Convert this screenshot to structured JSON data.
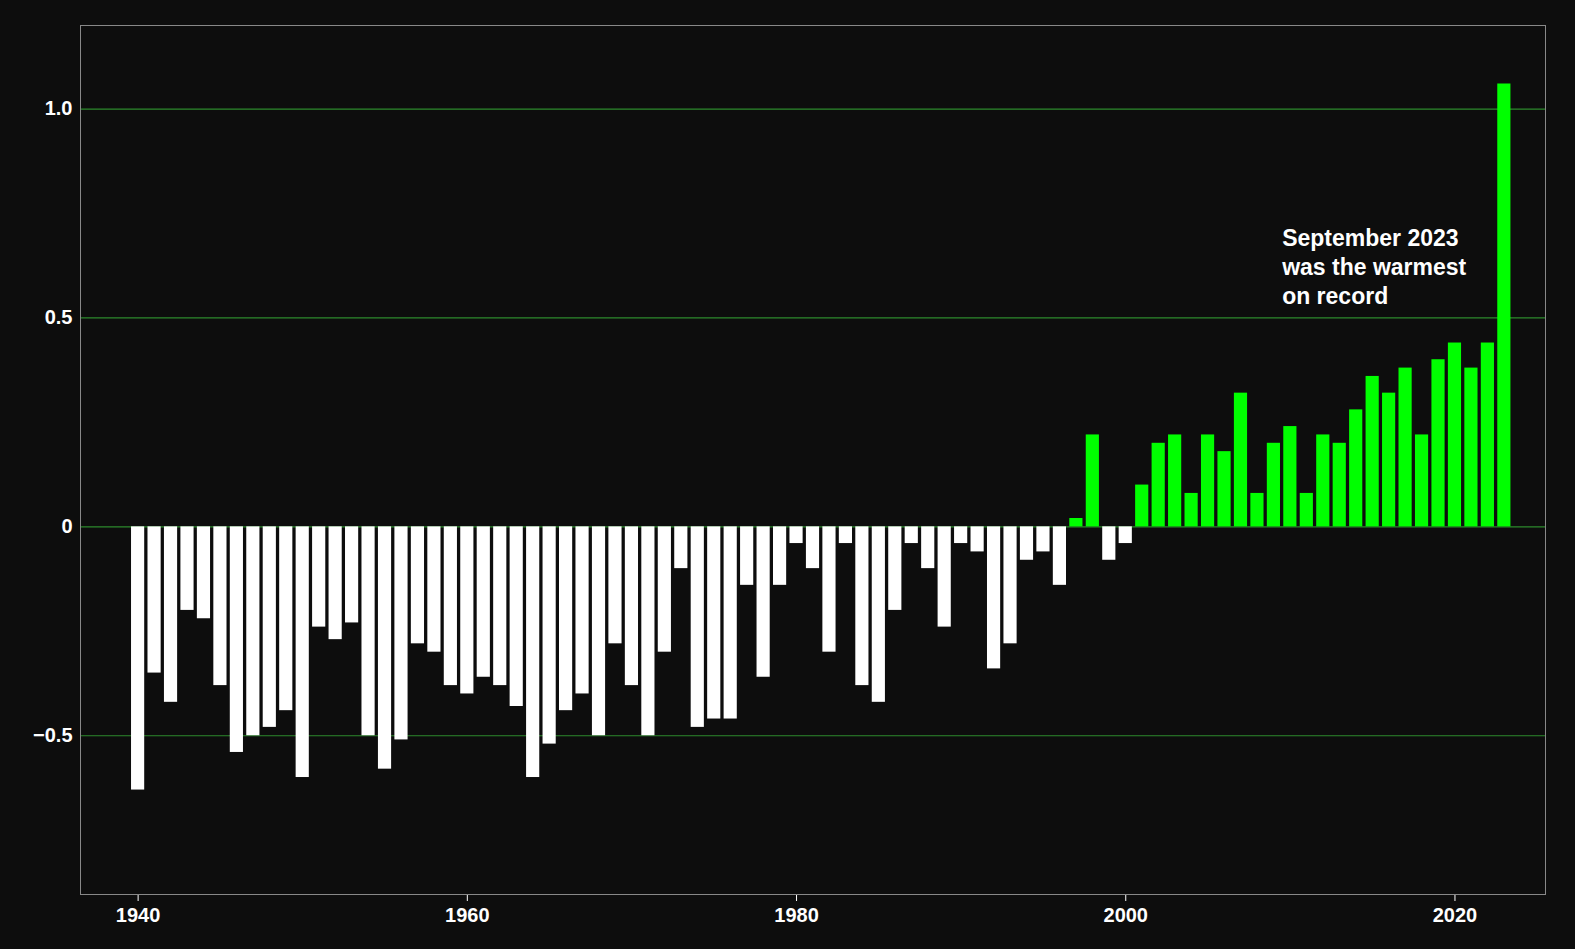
{
  "chart_data": {
    "type": "bar",
    "x": [
      1940,
      1941,
      1942,
      1943,
      1944,
      1945,
      1946,
      1947,
      1948,
      1949,
      1950,
      1951,
      1952,
      1953,
      1954,
      1955,
      1956,
      1957,
      1958,
      1959,
      1960,
      1961,
      1962,
      1963,
      1964,
      1965,
      1966,
      1967,
      1968,
      1969,
      1970,
      1971,
      1972,
      1973,
      1974,
      1975,
      1976,
      1977,
      1978,
      1979,
      1980,
      1981,
      1982,
      1983,
      1984,
      1985,
      1986,
      1987,
      1988,
      1989,
      1990,
      1991,
      1992,
      1993,
      1994,
      1995,
      1996,
      1997,
      1998,
      1999,
      2000,
      2001,
      2002,
      2003,
      2004,
      2005,
      2006,
      2007,
      2008,
      2009,
      2010,
      2011,
      2012,
      2013,
      2014,
      2015,
      2016,
      2017,
      2018,
      2019,
      2020,
      2021,
      2022,
      2023
    ],
    "values": [
      -0.63,
      -0.35,
      -0.42,
      -0.2,
      -0.22,
      -0.38,
      -0.54,
      -0.5,
      -0.48,
      -0.44,
      -0.6,
      -0.24,
      -0.27,
      -0.23,
      -0.5,
      -0.58,
      -0.51,
      -0.28,
      -0.3,
      -0.38,
      -0.4,
      -0.36,
      -0.38,
      -0.43,
      -0.6,
      -0.52,
      -0.44,
      -0.4,
      -0.5,
      -0.28,
      -0.38,
      -0.5,
      -0.3,
      -0.1,
      -0.48,
      -0.46,
      -0.46,
      -0.14,
      -0.36,
      -0.14,
      -0.04,
      -0.1,
      -0.3,
      -0.04,
      -0.38,
      -0.42,
      -0.2,
      -0.04,
      -0.1,
      -0.24,
      -0.04,
      -0.06,
      -0.34,
      -0.28,
      -0.08,
      -0.06,
      -0.14,
      0.02,
      0.22,
      -0.08,
      -0.04,
      0.1,
      0.2,
      0.22,
      0.08,
      0.22,
      0.18,
      0.32,
      0.08,
      0.2,
      0.24,
      0.08,
      0.22,
      0.2,
      0.28,
      0.36,
      0.32,
      0.38,
      0.22,
      0.4,
      0.44,
      0.38,
      0.44,
      1.06
    ],
    "colors": [
      "#ffffff",
      "#ffffff",
      "#ffffff",
      "#ffffff",
      "#ffffff",
      "#ffffff",
      "#ffffff",
      "#ffffff",
      "#ffffff",
      "#ffffff",
      "#ffffff",
      "#ffffff",
      "#ffffff",
      "#ffffff",
      "#ffffff",
      "#ffffff",
      "#ffffff",
      "#ffffff",
      "#ffffff",
      "#ffffff",
      "#ffffff",
      "#ffffff",
      "#ffffff",
      "#ffffff",
      "#ffffff",
      "#ffffff",
      "#ffffff",
      "#ffffff",
      "#ffffff",
      "#ffffff",
      "#ffffff",
      "#ffffff",
      "#ffffff",
      "#ffffff",
      "#ffffff",
      "#ffffff",
      "#ffffff",
      "#ffffff",
      "#ffffff",
      "#ffffff",
      "#ffffff",
      "#ffffff",
      "#ffffff",
      "#ffffff",
      "#ffffff",
      "#ffffff",
      "#ffffff",
      "#ffffff",
      "#ffffff",
      "#ffffff",
      "#ffffff",
      "#ffffff",
      "#ffffff",
      "#ffffff",
      "#ffffff",
      "#ffffff",
      "#ffffff",
      "#00ff00",
      "#00ff00",
      "#ffffff",
      "#ffffff",
      "#00ff00",
      "#00ff00",
      "#00ff00",
      "#00ff00",
      "#00ff00",
      "#00ff00",
      "#00ff00",
      "#00ff00",
      "#00ff00",
      "#00ff00",
      "#00ff00",
      "#00ff00",
      "#00ff00",
      "#00ff00",
      "#00ff00",
      "#00ff00",
      "#00ff00",
      "#00ff00",
      "#00ff00",
      "#00ff00",
      "#00ff00",
      "#00ff00",
      "#00ff00"
    ],
    "xlim": [
      1936.5,
      2025.5
    ],
    "xticks": [
      1940,
      1960,
      1980,
      2000,
      2020
    ],
    "ylim": [
      -0.88,
      1.2
    ],
    "yticks": [
      {
        "value": -0.5,
        "label": "−0.5"
      },
      0,
      0.5,
      {
        "value": 1.0,
        "label": "1.0"
      }
    ],
    "grid": true,
    "annotations": [
      {
        "text": "September 2023\nwas the warmest\non record",
        "x": 2009.5,
        "y": 0.72
      }
    ]
  }
}
